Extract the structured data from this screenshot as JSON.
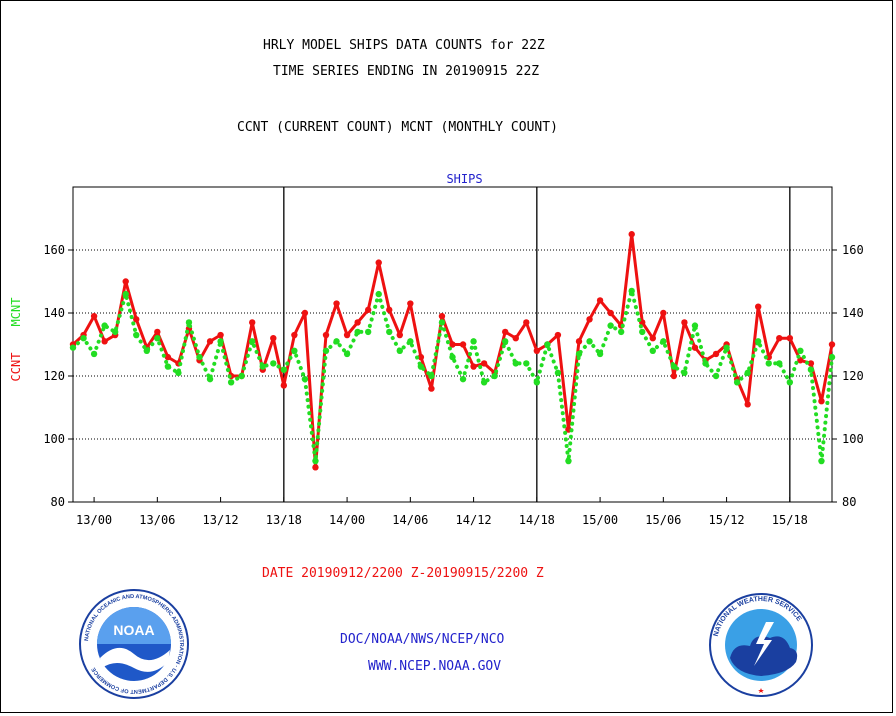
{
  "header": {
    "title_line1": "HRLY MODEL SHIPS DATA COUNTS for 22Z",
    "title_line2": "TIME SERIES ENDING IN 20190915 22Z",
    "subtitle": "CCNT (CURRENT COUNT) MCNT (MONTHLY COUNT)"
  },
  "footer": {
    "date_range": "DATE 20190912/2200 Z-20190915/2200 Z",
    "org_line": "DOC/NOAA/NWS/NCEP/NCO",
    "url_line": "WWW.NCEP.NOAA.GOV"
  },
  "logos": {
    "noaa_label": "NOAA",
    "noaa_ring_text": "NATIONAL OCEANIC AND ATMOSPHERIC ADMINISTRATION · U.S. DEPARTMENT OF COMMERCE",
    "nws_ring_text": "NATIONAL WEATHER SERVICE"
  },
  "colors": {
    "ccnt": "#ee1111",
    "mcnt": "#22dd22",
    "title_blue": "#2222cc",
    "date_red": "#ee1111"
  },
  "chart_data": {
    "type": "line",
    "title": "SHIPS",
    "ylabel_left": [
      "CCNT",
      "MCNT"
    ],
    "ylim": [
      80,
      180
    ],
    "yticks": [
      80,
      100,
      120,
      140,
      160
    ],
    "grid": true,
    "x_unit": "hours",
    "xlim": [
      -2,
      70
    ],
    "xticks": [
      {
        "x": 0,
        "label": "13/00"
      },
      {
        "x": 6,
        "label": "13/06"
      },
      {
        "x": 12,
        "label": "13/12"
      },
      {
        "x": 18,
        "label": "13/18"
      },
      {
        "x": 24,
        "label": "14/00"
      },
      {
        "x": 30,
        "label": "14/06"
      },
      {
        "x": 36,
        "label": "14/12"
      },
      {
        "x": 42,
        "label": "14/18"
      },
      {
        "x": 48,
        "label": "15/00"
      },
      {
        "x": 54,
        "label": "15/06"
      },
      {
        "x": 60,
        "label": "15/12"
      },
      {
        "x": 66,
        "label": "15/18"
      }
    ],
    "day_dividers": [
      18,
      42,
      66
    ],
    "series": [
      {
        "name": "CCNT",
        "style": "solid",
        "x": [
          -2,
          -1,
          0,
          1,
          2,
          3,
          4,
          5,
          6,
          7,
          8,
          9,
          10,
          11,
          12,
          13,
          14,
          15,
          16,
          17,
          18,
          19,
          20,
          21,
          22,
          23,
          24,
          25,
          26,
          27,
          28,
          29,
          30,
          31,
          32,
          33,
          34,
          35,
          36,
          37,
          38,
          39,
          40,
          41,
          42,
          43,
          44,
          45,
          46,
          47,
          48,
          49,
          50,
          51,
          52,
          53,
          54,
          55,
          56,
          57,
          58,
          59,
          60,
          61,
          62,
          63,
          64,
          65,
          66,
          67,
          68,
          69,
          70
        ],
        "values": [
          130,
          133,
          139,
          131,
          133,
          150,
          138,
          129,
          134,
          126,
          124,
          135,
          125,
          131,
          133,
          120,
          120,
          137,
          122,
          132,
          117,
          133,
          140,
          91,
          133,
          143,
          133,
          137,
          141,
          156,
          141,
          133,
          143,
          126,
          116,
          139,
          130,
          130,
          123,
          124,
          121,
          134,
          132,
          137,
          128,
          130,
          133,
          103,
          131,
          138,
          144,
          140,
          136,
          165,
          137,
          132,
          140,
          120,
          137,
          129,
          125,
          127,
          130,
          119,
          111,
          142,
          126,
          132,
          132,
          125,
          124,
          112,
          130
        ]
      },
      {
        "name": "MCNT",
        "style": "dotted",
        "x": [
          -2,
          -1,
          0,
          1,
          2,
          3,
          4,
          5,
          6,
          7,
          8,
          9,
          10,
          11,
          12,
          13,
          14,
          15,
          16,
          17,
          18,
          19,
          20,
          21,
          22,
          23,
          24,
          25,
          26,
          27,
          28,
          29,
          30,
          31,
          32,
          33,
          34,
          35,
          36,
          37,
          38,
          39,
          40,
          41,
          42,
          43,
          44,
          45,
          46,
          47,
          48,
          49,
          50,
          51,
          52,
          53,
          54,
          55,
          56,
          57,
          58,
          59,
          60,
          61,
          62,
          63,
          64,
          65,
          66,
          67,
          68,
          69,
          70
        ],
        "values": [
          129,
          132,
          127,
          136,
          134,
          146,
          133,
          128,
          132,
          123,
          121,
          137,
          126,
          119,
          131,
          118,
          120,
          131,
          123,
          124,
          122,
          128,
          119,
          93,
          128,
          131,
          127,
          134,
          134,
          146,
          134,
          128,
          131,
          123,
          120,
          137,
          126,
          119,
          131,
          118,
          120,
          131,
          124,
          124,
          118,
          130,
          121,
          93,
          127,
          131,
          127,
          136,
          134,
          147,
          134,
          128,
          131,
          123,
          121,
          136,
          124,
          120,
          129,
          118,
          121,
          131,
          124,
          124,
          118,
          128,
          122,
          93,
          126
        ]
      }
    ]
  }
}
